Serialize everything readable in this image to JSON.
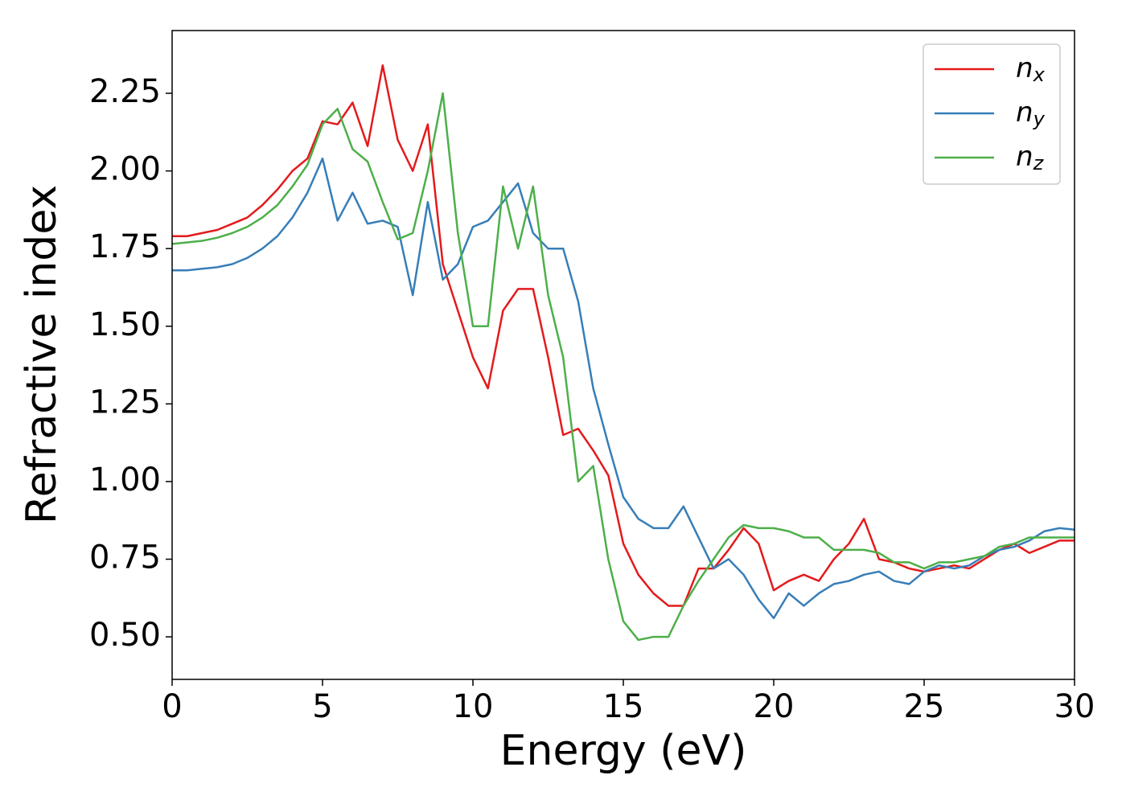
{
  "chart_data": {
    "type": "line",
    "xlabel": "Energy (eV)",
    "ylabel": "Refractive index",
    "x": [
      0,
      0.5,
      1,
      1.5,
      2,
      2.5,
      3,
      3.5,
      4,
      4.5,
      5,
      5.5,
      6,
      6.5,
      7,
      7.5,
      8,
      8.5,
      9,
      9.5,
      10,
      10.5,
      11,
      11.5,
      12,
      12.5,
      13,
      13.5,
      14,
      14.5,
      15,
      15.5,
      16,
      16.5,
      17,
      17.5,
      18,
      18.5,
      19,
      19.5,
      20,
      20.5,
      21,
      21.5,
      22,
      22.5,
      23,
      23.5,
      24,
      24.5,
      25,
      25.5,
      26,
      26.5,
      27,
      27.5,
      28,
      28.5,
      29,
      29.5,
      30
    ],
    "series": [
      {
        "name": "n_x",
        "color": "#e41a1c",
        "values": [
          1.79,
          1.79,
          1.8,
          1.81,
          1.83,
          1.85,
          1.89,
          1.94,
          2.0,
          2.04,
          2.16,
          2.15,
          2.22,
          2.08,
          2.34,
          2.1,
          2.0,
          2.15,
          1.7,
          1.55,
          1.4,
          1.3,
          1.55,
          1.62,
          1.62,
          1.4,
          1.15,
          1.17,
          1.1,
          1.02,
          0.8,
          0.7,
          0.64,
          0.6,
          0.6,
          0.72,
          0.72,
          0.78,
          0.85,
          0.8,
          0.65,
          0.68,
          0.7,
          0.68,
          0.75,
          0.8,
          0.88,
          0.75,
          0.74,
          0.72,
          0.71,
          0.72,
          0.73,
          0.72,
          0.75,
          0.78,
          0.8,
          0.77,
          0.79,
          0.81,
          0.81
        ]
      },
      {
        "name": "n_y",
        "color": "#377eb8",
        "values": [
          1.68,
          1.68,
          1.685,
          1.69,
          1.7,
          1.72,
          1.75,
          1.79,
          1.85,
          1.93,
          2.04,
          1.84,
          1.93,
          1.83,
          1.84,
          1.82,
          1.6,
          1.9,
          1.65,
          1.7,
          1.82,
          1.84,
          1.9,
          1.96,
          1.8,
          1.75,
          1.75,
          1.58,
          1.3,
          1.12,
          0.95,
          0.88,
          0.85,
          0.85,
          0.92,
          0.82,
          0.72,
          0.75,
          0.7,
          0.62,
          0.56,
          0.64,
          0.6,
          0.64,
          0.67,
          0.68,
          0.7,
          0.71,
          0.68,
          0.67,
          0.71,
          0.73,
          0.72,
          0.73,
          0.76,
          0.78,
          0.79,
          0.81,
          0.84,
          0.85,
          0.845
        ]
      },
      {
        "name": "n_z",
        "color": "#4daf4a",
        "values": [
          1.765,
          1.77,
          1.775,
          1.785,
          1.8,
          1.82,
          1.85,
          1.89,
          1.95,
          2.02,
          2.15,
          2.2,
          2.07,
          2.03,
          1.9,
          1.78,
          1.8,
          2.0,
          2.25,
          1.8,
          1.5,
          1.5,
          1.95,
          1.75,
          1.95,
          1.6,
          1.4,
          1.0,
          1.05,
          0.75,
          0.55,
          0.49,
          0.5,
          0.5,
          0.6,
          0.68,
          0.75,
          0.82,
          0.86,
          0.85,
          0.85,
          0.84,
          0.82,
          0.82,
          0.78,
          0.78,
          0.78,
          0.77,
          0.74,
          0.74,
          0.72,
          0.74,
          0.74,
          0.75,
          0.76,
          0.79,
          0.8,
          0.82,
          0.82,
          0.82,
          0.82
        ]
      }
    ],
    "xlim": [
      0,
      30
    ],
    "xticks": [
      0,
      5,
      10,
      15,
      20,
      25,
      30
    ],
    "ylim": [
      0.363,
      2.452
    ],
    "yticks": [
      {
        "value": 0.5,
        "label": "0.50"
      },
      {
        "value": 0.75,
        "label": "0.75"
      },
      {
        "value": 1.0,
        "label": "1.00"
      },
      {
        "value": 1.25,
        "label": "1.25"
      },
      {
        "value": 1.5,
        "label": "1.50"
      },
      {
        "value": 1.75,
        "label": "1.75"
      },
      {
        "value": 2.0,
        "label": "2.00"
      },
      {
        "value": 2.25,
        "label": "2.25"
      }
    ],
    "legend": "upper right"
  }
}
